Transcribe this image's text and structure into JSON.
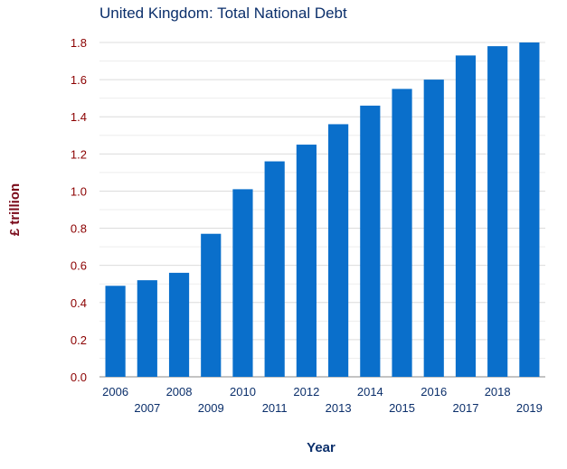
{
  "chart_data": {
    "type": "bar",
    "title": "United Kingdom: Total National Debt",
    "xlabel": "Year",
    "ylabel": "£ trillion",
    "categories": [
      "2006",
      "2007",
      "2008",
      "2009",
      "2010",
      "2011",
      "2012",
      "2013",
      "2014",
      "2015",
      "2016",
      "2017",
      "2018",
      "2019"
    ],
    "values": [
      0.49,
      0.52,
      0.56,
      0.77,
      1.01,
      1.16,
      1.25,
      1.36,
      1.46,
      1.55,
      1.6,
      1.73,
      1.78,
      1.8
    ],
    "ylim": [
      0,
      1.8
    ],
    "yticks": [
      "0.0",
      "0.2",
      "0.4",
      "0.6",
      "0.8",
      "1.0",
      "1.2",
      "1.4",
      "1.6",
      "1.8"
    ],
    "grid": true,
    "legend": "none",
    "bar_color": "#0a6fcb"
  }
}
